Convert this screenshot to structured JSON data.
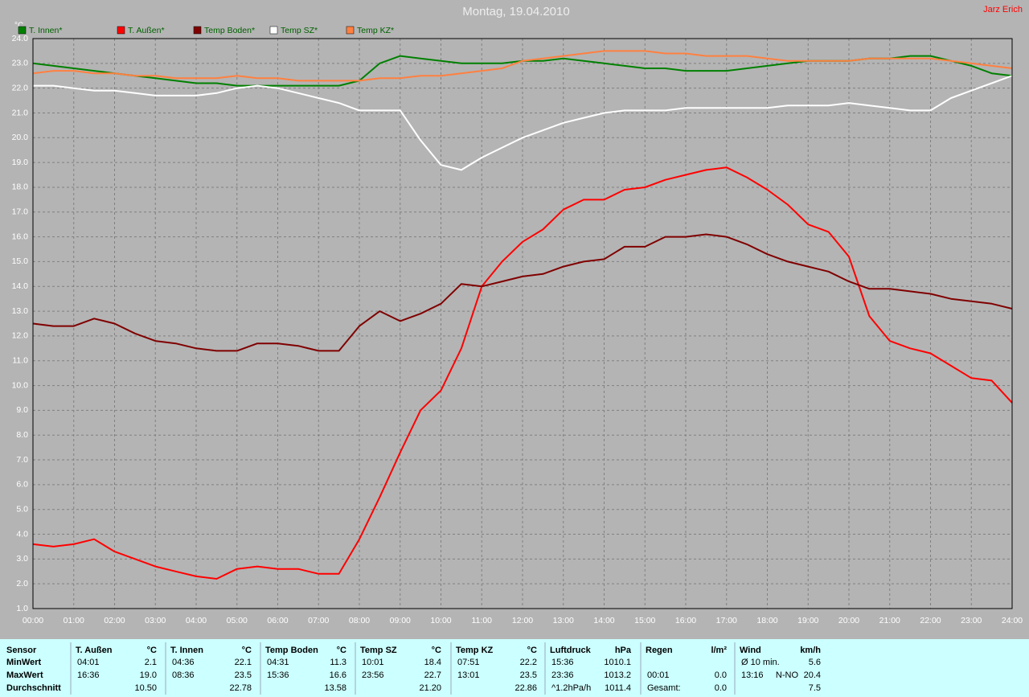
{
  "title": "Montag, 19.04.2010",
  "author": "Jarz Erich",
  "chart_data": {
    "type": "line",
    "ylabel": "°C",
    "legend": "top",
    "grid": true,
    "x": [
      0,
      0.5,
      1,
      1.5,
      2,
      2.5,
      3,
      3.5,
      4,
      4.5,
      5,
      5.5,
      6,
      6.5,
      7,
      7.5,
      8,
      8.5,
      9,
      9.5,
      10,
      10.5,
      11,
      11.5,
      12,
      12.5,
      13,
      13.5,
      14,
      14.5,
      15,
      15.5,
      16,
      16.5,
      17,
      17.5,
      18,
      18.5,
      19,
      19.5,
      20,
      20.5,
      21,
      21.5,
      22,
      22.5,
      23,
      23.5,
      24
    ],
    "xlim": [
      0,
      24
    ],
    "xticks": [
      {
        "value": 0,
        "label": "00:00"
      },
      {
        "value": 1,
        "label": "01:00"
      },
      {
        "value": 2,
        "label": "02:00"
      },
      {
        "value": 3,
        "label": "03:00"
      },
      {
        "value": 4,
        "label": "04:00"
      },
      {
        "value": 5,
        "label": "05:00"
      },
      {
        "value": 6,
        "label": "06:00"
      },
      {
        "value": 7,
        "label": "07:00"
      },
      {
        "value": 8,
        "label": "08:00"
      },
      {
        "value": 9,
        "label": "09:00"
      },
      {
        "value": 10,
        "label": "10:00"
      },
      {
        "value": 11,
        "label": "11:00"
      },
      {
        "value": 12,
        "label": "12:00"
      },
      {
        "value": 13,
        "label": "13:00"
      },
      {
        "value": 14,
        "label": "14:00"
      },
      {
        "value": 15,
        "label": "15:00"
      },
      {
        "value": 16,
        "label": "16:00"
      },
      {
        "value": 17,
        "label": "17:00"
      },
      {
        "value": 18,
        "label": "18:00"
      },
      {
        "value": 19,
        "label": "19:00"
      },
      {
        "value": 20,
        "label": "20:00"
      },
      {
        "value": 21,
        "label": "21:00"
      },
      {
        "value": 22,
        "label": "22:00"
      },
      {
        "value": 23,
        "label": "23:00"
      },
      {
        "value": 24,
        "label": "24:00"
      }
    ],
    "ylim": [
      1,
      24
    ],
    "yticks": [
      {
        "value": 1,
        "label": "1.0"
      },
      {
        "value": 2,
        "label": "2.0"
      },
      {
        "value": 3,
        "label": "3.0"
      },
      {
        "value": 4,
        "label": "4.0"
      },
      {
        "value": 5,
        "label": "5.0"
      },
      {
        "value": 6,
        "label": "6.0"
      },
      {
        "value": 7,
        "label": "7.0"
      },
      {
        "value": 8,
        "label": "8.0"
      },
      {
        "value": 9,
        "label": "9.0"
      },
      {
        "value": 10,
        "label": "10.0"
      },
      {
        "value": 11,
        "label": "11.0"
      },
      {
        "value": 12,
        "label": "12.0"
      },
      {
        "value": 13,
        "label": "13.0"
      },
      {
        "value": 14,
        "label": "14.0"
      },
      {
        "value": 15,
        "label": "15.0"
      },
      {
        "value": 16,
        "label": "16.0"
      },
      {
        "value": 17,
        "label": "17.0"
      },
      {
        "value": 18,
        "label": "18.0"
      },
      {
        "value": 19,
        "label": "19.0"
      },
      {
        "value": 20,
        "label": "20.0"
      },
      {
        "value": 21,
        "label": "21.0"
      },
      {
        "value": 22,
        "label": "22.0"
      },
      {
        "value": 23,
        "label": "23.0"
      },
      {
        "value": 24,
        "label": "24.0"
      }
    ],
    "series": [
      {
        "name": "T. Innen*",
        "color": "#008000",
        "values": [
          23.0,
          22.9,
          22.8,
          22.7,
          22.6,
          22.5,
          22.4,
          22.3,
          22.2,
          22.2,
          22.1,
          22.1,
          22.1,
          22.1,
          22.1,
          22.1,
          22.3,
          23.0,
          23.3,
          23.2,
          23.1,
          23.0,
          23.0,
          23.0,
          23.1,
          23.1,
          23.2,
          23.1,
          23.0,
          22.9,
          22.8,
          22.8,
          22.7,
          22.7,
          22.7,
          22.8,
          22.9,
          23.0,
          23.1,
          23.1,
          23.1,
          23.2,
          23.2,
          23.3,
          23.3,
          23.1,
          22.9,
          22.6,
          22.5
        ]
      },
      {
        "name": "T. Außen*",
        "color": "#ff0000",
        "values": [
          3.6,
          3.5,
          3.6,
          3.8,
          3.3,
          3.0,
          2.7,
          2.5,
          2.3,
          2.2,
          2.6,
          2.7,
          2.6,
          2.6,
          2.4,
          2.4,
          3.8,
          5.5,
          7.3,
          9.0,
          9.8,
          11.5,
          14.0,
          15.0,
          15.8,
          16.3,
          17.1,
          17.5,
          17.5,
          17.9,
          18.0,
          18.3,
          18.5,
          18.7,
          18.8,
          18.4,
          17.9,
          17.3,
          16.5,
          16.2,
          15.2,
          12.8,
          11.8,
          11.5,
          11.3,
          10.8,
          10.3,
          10.2,
          9.3
        ]
      },
      {
        "name": "Temp Boden*",
        "color": "#800000",
        "values": [
          12.5,
          12.4,
          12.4,
          12.7,
          12.5,
          12.1,
          11.8,
          11.7,
          11.5,
          11.4,
          11.4,
          11.7,
          11.7,
          11.6,
          11.4,
          11.4,
          12.4,
          13.0,
          12.6,
          12.9,
          13.3,
          14.1,
          14.0,
          14.2,
          14.4,
          14.5,
          14.8,
          15.0,
          15.1,
          15.6,
          15.6,
          16.0,
          16.0,
          16.1,
          16.0,
          15.7,
          15.3,
          15.0,
          14.8,
          14.6,
          14.2,
          13.9,
          13.9,
          13.8,
          13.7,
          13.5,
          13.4,
          13.3,
          13.1
        ]
      },
      {
        "name": "Temp SZ*",
        "color": "#ffffff",
        "values": [
          22.1,
          22.1,
          22.0,
          21.9,
          21.9,
          21.8,
          21.7,
          21.7,
          21.7,
          21.8,
          22.0,
          22.1,
          22.0,
          21.8,
          21.6,
          21.4,
          21.1,
          21.1,
          21.1,
          19.9,
          18.9,
          18.7,
          19.2,
          19.6,
          20.0,
          20.3,
          20.6,
          20.8,
          21.0,
          21.1,
          21.1,
          21.1,
          21.2,
          21.2,
          21.2,
          21.2,
          21.2,
          21.3,
          21.3,
          21.3,
          21.4,
          21.3,
          21.2,
          21.1,
          21.1,
          21.6,
          21.9,
          22.2,
          22.5
        ]
      },
      {
        "name": "Temp KZ*",
        "color": "#ff8040",
        "values": [
          22.6,
          22.7,
          22.7,
          22.6,
          22.6,
          22.5,
          22.5,
          22.4,
          22.4,
          22.4,
          22.5,
          22.4,
          22.4,
          22.3,
          22.3,
          22.3,
          22.3,
          22.4,
          22.4,
          22.5,
          22.5,
          22.6,
          22.7,
          22.8,
          23.1,
          23.2,
          23.3,
          23.4,
          23.5,
          23.5,
          23.5,
          23.4,
          23.4,
          23.3,
          23.3,
          23.3,
          23.2,
          23.1,
          23.1,
          23.1,
          23.1,
          23.2,
          23.2,
          23.2,
          23.2,
          23.1,
          23.0,
          22.9,
          22.8
        ]
      }
    ]
  },
  "stats": {
    "header": "Sensor",
    "row_labels": [
      "MinWert",
      "MaxWert",
      "Durchschnitt"
    ],
    "columns": [
      {
        "name": "T. Außen",
        "unit": "°C",
        "rows": [
          {
            "label": "04:01",
            "value": "2.1"
          },
          {
            "label": "16:36",
            "value": "19.0"
          },
          {
            "value": "10.50"
          }
        ]
      },
      {
        "name": "T. Innen",
        "unit": "°C",
        "rows": [
          {
            "label": "04:36",
            "value": "22.1"
          },
          {
            "label": "08:36",
            "value": "23.5"
          },
          {
            "value": "22.78"
          }
        ]
      },
      {
        "name": "Temp Boden",
        "unit": "°C",
        "rows": [
          {
            "label": "04:31",
            "value": "11.3"
          },
          {
            "label": "15:36",
            "value": "16.6"
          },
          {
            "value": "13.58"
          }
        ]
      },
      {
        "name": "Temp SZ",
        "unit": "°C",
        "rows": [
          {
            "label": "10:01",
            "value": "18.4"
          },
          {
            "label": "23:56",
            "value": "22.7"
          },
          {
            "value": "21.20"
          }
        ]
      },
      {
        "name": "Temp KZ",
        "unit": "°C",
        "rows": [
          {
            "label": "07:51",
            "value": "22.2"
          },
          {
            "label": "13:01",
            "value": "23.5"
          },
          {
            "value": "22.86"
          }
        ]
      },
      {
        "name": "Luftdruck",
        "unit": "hPa",
        "rows": [
          {
            "label": "15:36",
            "value": "1010.1"
          },
          {
            "label": "23:36",
            "value": "1013.2"
          },
          {
            "label": "^1.2hPa/h",
            "value": "1011.4"
          }
        ]
      },
      {
        "name": "Regen",
        "unit": "l/m²",
        "rows": [
          null,
          {
            "label": "00:01",
            "value": "0.0"
          },
          {
            "label": "Gesamt:",
            "value": "0.0"
          }
        ]
      },
      {
        "name": "Wind",
        "unit": "km/h",
        "rows": [
          {
            "label": "Ø 10 min.",
            "value": "5.6"
          },
          {
            "label": "13:16",
            "extra": "N-NO",
            "value": "20.4"
          },
          {
            "value": "7.5"
          }
        ]
      }
    ]
  }
}
